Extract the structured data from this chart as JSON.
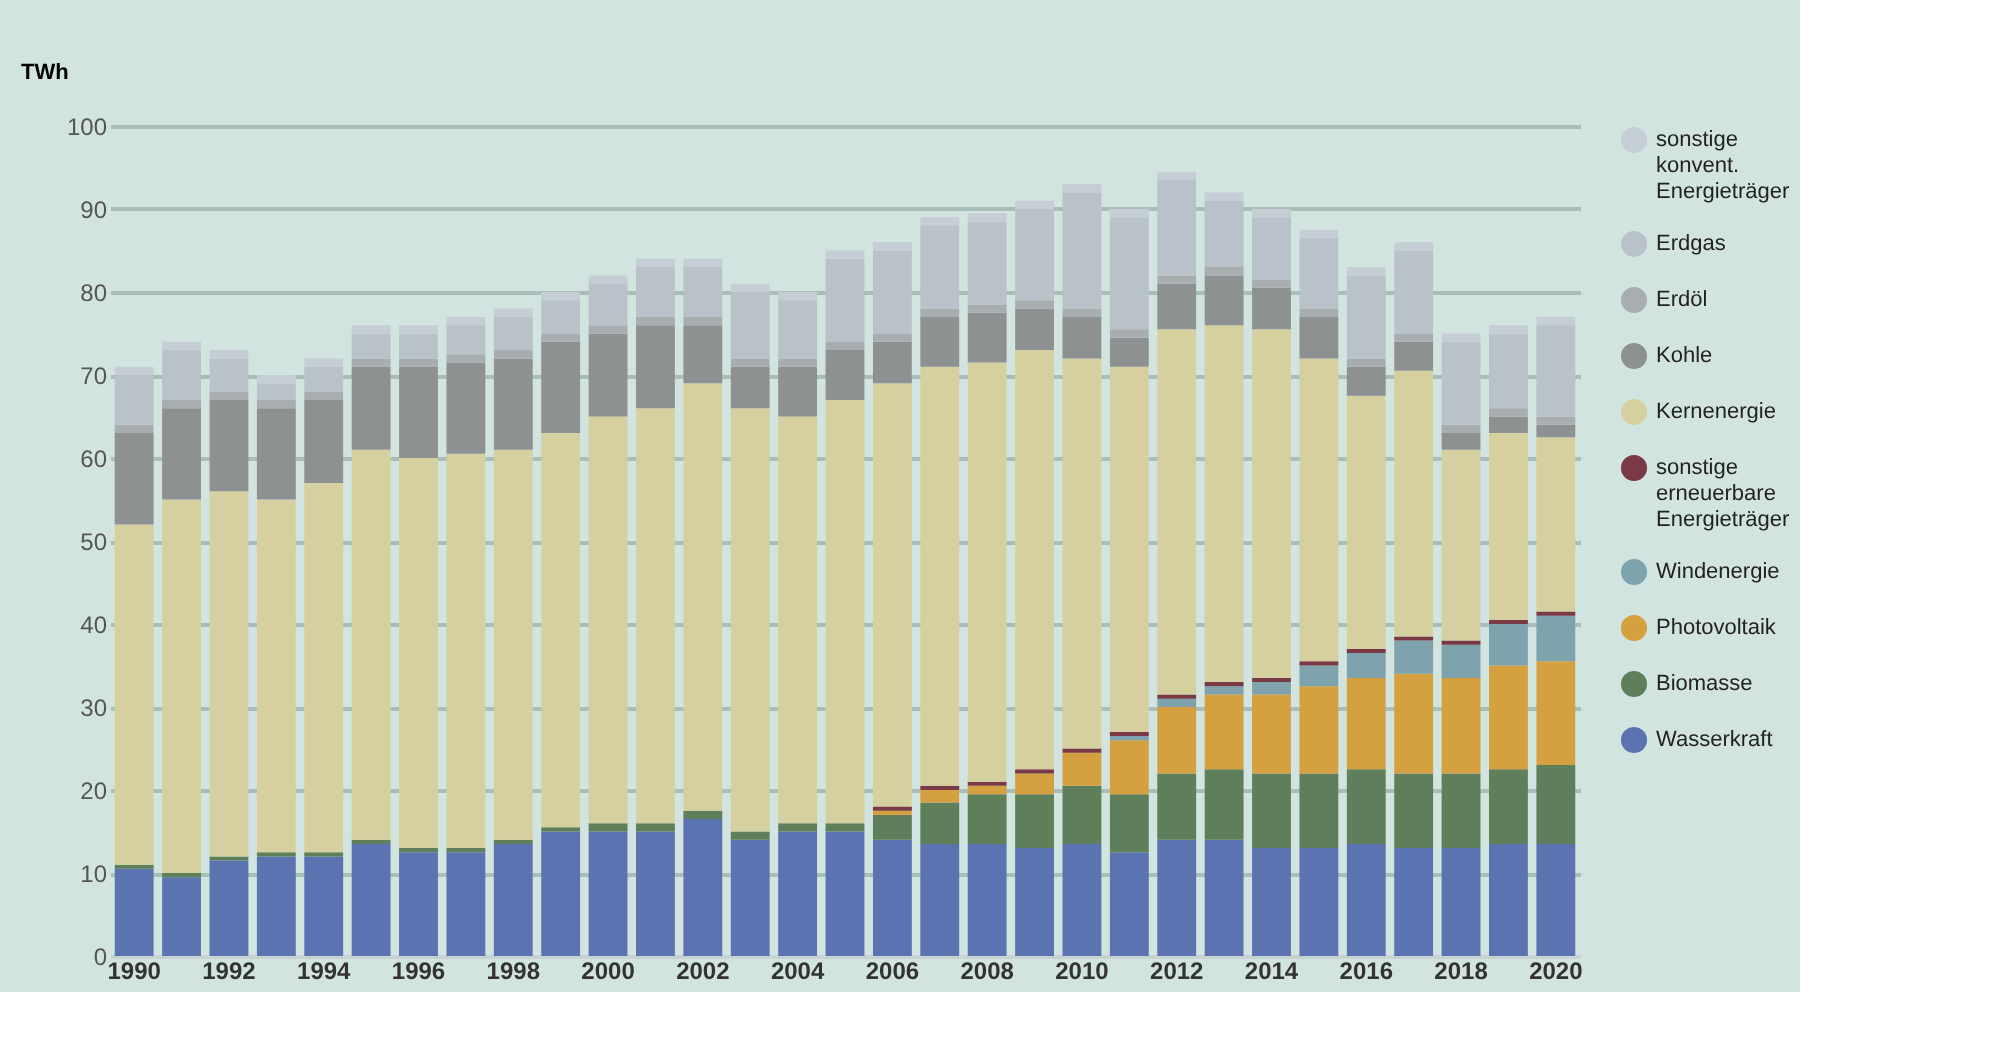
{
  "chart_data": {
    "type": "bar",
    "stacked": true,
    "ylabel": "TWh",
    "categories": [
      "1990",
      null,
      "1992",
      null,
      "1994",
      null,
      "1996",
      null,
      "1998",
      null,
      "2000",
      null,
      "2002",
      null,
      "2004",
      null,
      "2006",
      null,
      "2008",
      null,
      "2010",
      null,
      "2012",
      null,
      "2014",
      null,
      "2016",
      null,
      "2018",
      null,
      "2020"
    ],
    "ylim": [
      0,
      100
    ],
    "yticks": [
      0,
      10,
      20,
      30,
      40,
      50,
      60,
      70,
      80,
      90,
      100
    ],
    "grid": "y",
    "legend": "right",
    "series": [
      {
        "name": "Wasserkraft",
        "color": "#5b73b0",
        "values": [
          10.5,
          9.5,
          11.5,
          12,
          12,
          13.5,
          12.5,
          12.5,
          13.5,
          15,
          15,
          15,
          16.5,
          14,
          15,
          15,
          14,
          13.5,
          13.5,
          13,
          13.5,
          12.5,
          14,
          14,
          13,
          13,
          13.5,
          13,
          13,
          13.5,
          13.5
        ]
      },
      {
        "name": "Biomasse",
        "color": "#5e7f5a",
        "values": [
          0.5,
          0.5,
          0.5,
          0.5,
          0.5,
          0.5,
          0.5,
          0.5,
          0.5,
          0.5,
          1,
          1,
          1,
          1,
          1,
          1,
          3,
          5,
          6,
          6.5,
          7,
          7,
          8,
          8.5,
          9,
          9,
          9,
          9,
          9,
          9,
          9.5
        ]
      },
      {
        "name": "Photovoltaik",
        "color": "#d4a040",
        "values": [
          0,
          0,
          0,
          0,
          0,
          0,
          0,
          0,
          0,
          0,
          0,
          0,
          0,
          0,
          0,
          0,
          0.5,
          1.5,
          1,
          2.5,
          4,
          6.5,
          8,
          9,
          9.5,
          10.5,
          11,
          12,
          11.5,
          12.5,
          12.5
        ]
      },
      {
        "name": "Windenergie",
        "color": "#7fa3ad",
        "values": [
          0,
          0,
          0,
          0,
          0,
          0,
          0,
          0,
          0,
          0,
          0,
          0,
          0,
          0,
          0,
          0,
          0,
          0,
          0,
          0,
          0,
          0.5,
          1,
          1,
          1.5,
          2.5,
          3,
          4,
          4,
          5,
          5.5
        ]
      },
      {
        "name": "sonstige erneuerbare Energieträger",
        "color": "#7a3a45",
        "values": [
          0,
          0,
          0,
          0,
          0,
          0,
          0,
          0,
          0,
          0,
          0,
          0,
          0,
          0,
          0,
          0,
          0.5,
          0.5,
          0.5,
          0.5,
          0.5,
          0.5,
          0.5,
          0.5,
          0.5,
          0.5,
          0.5,
          0.5,
          0.5,
          0.5,
          0.5
        ]
      },
      {
        "name": "Kernenergie",
        "color": "#d6d0a0",
        "values": [
          41,
          45,
          44,
          42.5,
          44.5,
          47,
          47,
          47.5,
          47,
          47.5,
          49,
          50,
          51.5,
          51,
          49,
          51,
          51,
          50.5,
          50.5,
          50.5,
          47,
          44,
          44,
          43,
          42,
          36.5,
          30.5,
          32,
          23,
          22.5,
          21
        ]
      },
      {
        "name": "Kohle",
        "color": "#8e9192",
        "values": [
          11,
          11,
          11,
          11,
          10,
          10,
          11,
          11,
          11,
          11,
          10,
          10,
          7,
          5,
          6,
          6,
          5,
          6,
          6,
          5,
          5,
          3.5,
          5.5,
          6,
          5,
          5,
          3.5,
          3.5,
          2,
          2,
          1.5
        ]
      },
      {
        "name": "Erdöl",
        "color": "#a8adb0",
        "values": [
          1,
          1,
          1,
          1,
          1,
          1,
          1,
          1,
          1,
          1,
          1,
          1,
          1,
          1,
          1,
          1,
          1,
          1,
          1,
          1,
          1,
          1,
          1,
          1,
          1,
          1,
          1,
          1,
          1,
          1,
          1
        ]
      },
      {
        "name": "Erdgas",
        "color": "#b8c2c8",
        "values": [
          6,
          6,
          4,
          2,
          3,
          3,
          3,
          3.5,
          4,
          4,
          5,
          6,
          6,
          8,
          7,
          10,
          10,
          10,
          10,
          11,
          14,
          13.5,
          11.5,
          8,
          7.5,
          8.5,
          10,
          10,
          10,
          9,
          11
        ]
      },
      {
        "name": "sonstige konvent. Energieträger",
        "color": "#c4ced4",
        "values": [
          1,
          1,
          1,
          1,
          1,
          1,
          1,
          1,
          1,
          1,
          1,
          1,
          1,
          1,
          1,
          1,
          1,
          1,
          1,
          1,
          1,
          1,
          1,
          1,
          1,
          1,
          1,
          1,
          1,
          1,
          1
        ]
      }
    ]
  }
}
